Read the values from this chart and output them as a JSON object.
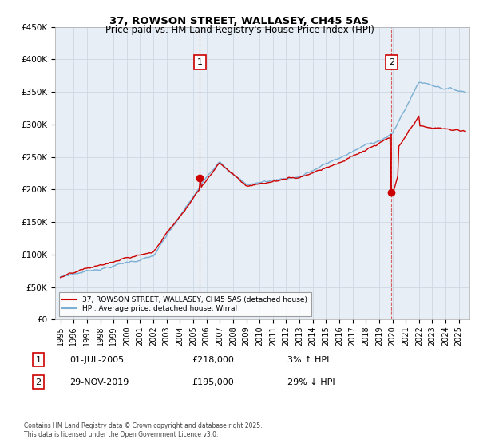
{
  "title": "37, ROWSON STREET, WALLASEY, CH45 5AS",
  "subtitle": "Price paid vs. HM Land Registry's House Price Index (HPI)",
  "ylim": [
    0,
    450000
  ],
  "yticks": [
    0,
    50000,
    100000,
    150000,
    200000,
    250000,
    300000,
    350000,
    400000,
    450000
  ],
  "ytick_labels": [
    "£0",
    "£50K",
    "£100K",
    "£150K",
    "£200K",
    "£250K",
    "£300K",
    "£350K",
    "£400K",
    "£450K"
  ],
  "xlim_start": 1994.6,
  "xlim_end": 2025.8,
  "hpi_color": "#7bafd4",
  "price_color": "#cc0000",
  "chart_bg": "#e8eef5",
  "background_color": "#ffffff",
  "grid_color": "#c8d4e0",
  "sale1_t": 2005.5,
  "sale1_price": 218000,
  "sale2_t": 2019.92,
  "sale2_price": 195000,
  "annotation1_label": "1",
  "annotation1_date": "01-JUL-2005",
  "annotation1_price": "£218,000",
  "annotation1_hpi": "3% ↑ HPI",
  "annotation2_label": "2",
  "annotation2_date": "29-NOV-2019",
  "annotation2_price": "£195,000",
  "annotation2_hpi": "29% ↓ HPI",
  "legend_label_price": "37, ROWSON STREET, WALLASEY, CH45 5AS (detached house)",
  "legend_label_hpi": "HPI: Average price, detached house, Wirral",
  "footer": "Contains HM Land Registry data © Crown copyright and database right 2025.\nThis data is licensed under the Open Government Licence v3.0."
}
